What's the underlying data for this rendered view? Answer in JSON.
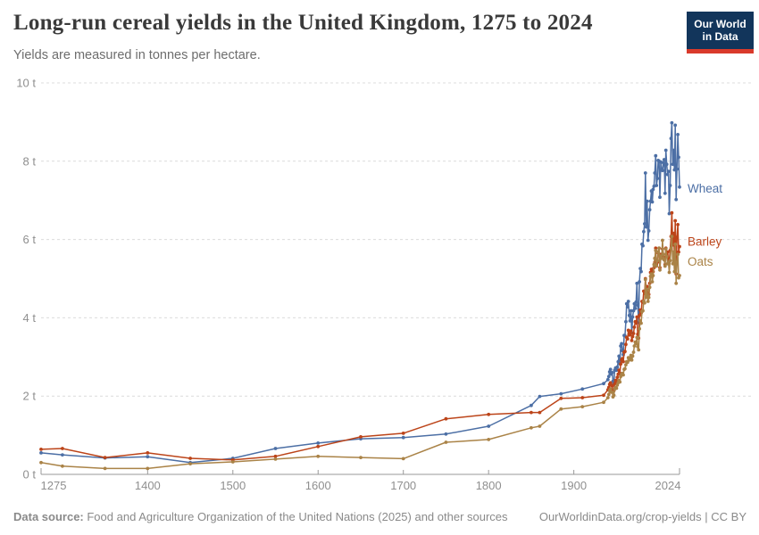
{
  "header": {
    "title": "Long-run cereal yields in the United Kingdom, 1275 to 2024",
    "subtitle": "Yields are measured in tonnes per hectare.",
    "logo": {
      "line1": "Our World",
      "line2": "in Data",
      "bg_color": "#12355b",
      "bar_color": "#d93a2b"
    }
  },
  "footer": {
    "source_label": "Data source:",
    "source_text": " Food and Agriculture Organization of the United Nations (2025) and other sources",
    "credit": "OurWorldinData.org/crop-yields | CC BY"
  },
  "chart_data": {
    "type": "line",
    "title": "Long-run cereal yields in the United Kingdom, 1275 to 2024",
    "ylabel": "tonnes per hectare",
    "xlabel": "",
    "unit": "t",
    "xlim": [
      1275,
      2024
    ],
    "ylim": [
      0,
      10
    ],
    "x_ticks": [
      1275,
      1400,
      1500,
      1600,
      1700,
      1800,
      1900,
      2024
    ],
    "y_ticks": [
      0,
      2,
      4,
      6,
      8,
      10
    ],
    "y_tick_suffix": " t",
    "grid": "horizontal-dashed",
    "legend_position": "line-end-labels",
    "grid_color": "#dcdcdc",
    "axis_color": "#999999",
    "tick_label_color": "#8f8f8f",
    "series": [
      {
        "name": "Wheat",
        "color": "#4c6fa5",
        "label_dy": 2,
        "points": [
          [
            1275,
            0.55
          ],
          [
            1300,
            0.5
          ],
          [
            1350,
            0.42
          ],
          [
            1400,
            0.45
          ],
          [
            1450,
            0.3
          ],
          [
            1500,
            0.41
          ],
          [
            1550,
            0.66
          ],
          [
            1600,
            0.8
          ],
          [
            1650,
            0.91
          ],
          [
            1700,
            0.94
          ],
          [
            1750,
            1.03
          ],
          [
            1800,
            1.23
          ],
          [
            1850,
            1.76
          ],
          [
            1860,
            1.99
          ],
          [
            1885,
            2.06
          ],
          [
            1910,
            2.18
          ],
          [
            1935,
            2.32
          ],
          [
            1940,
            2.42
          ],
          [
            1941,
            2.5
          ],
          [
            1942,
            2.62
          ],
          [
            1943,
            2.68
          ],
          [
            1944,
            2.56
          ],
          [
            1945,
            2.6
          ],
          [
            1946,
            2.38
          ],
          [
            1947,
            2.32
          ],
          [
            1948,
            2.66
          ],
          [
            1949,
            2.72
          ],
          [
            1950,
            2.66
          ],
          [
            1951,
            2.74
          ],
          [
            1952,
            2.88
          ],
          [
            1953,
            3.02
          ],
          [
            1954,
            2.82
          ],
          [
            1955,
            3.28
          ],
          [
            1956,
            3.34
          ],
          [
            1957,
            3.16
          ],
          [
            1958,
            3.06
          ],
          [
            1959,
            3.55
          ],
          [
            1960,
            3.54
          ],
          [
            1961,
            3.9
          ],
          [
            1962,
            4.36
          ],
          [
            1963,
            4.28
          ],
          [
            1964,
            4.42
          ],
          [
            1965,
            4.06
          ],
          [
            1966,
            3.92
          ],
          [
            1967,
            4.18
          ],
          [
            1968,
            3.62
          ],
          [
            1969,
            4.02
          ],
          [
            1970,
            4.18
          ],
          [
            1971,
            4.36
          ],
          [
            1972,
            4.24
          ],
          [
            1973,
            4.4
          ],
          [
            1974,
            4.88
          ],
          [
            1975,
            4.32
          ],
          [
            1976,
            3.88
          ],
          [
            1977,
            4.92
          ],
          [
            1978,
            5.26
          ],
          [
            1979,
            5.18
          ],
          [
            1980,
            5.88
          ],
          [
            1981,
            5.84
          ],
          [
            1982,
            6.2
          ],
          [
            1983,
            6.4
          ],
          [
            1984,
            7.7
          ],
          [
            1985,
            6.32
          ],
          [
            1986,
            6.98
          ],
          [
            1987,
            5.98
          ],
          [
            1988,
            6.22
          ],
          [
            1989,
            6.76
          ],
          [
            1990,
            6.98
          ],
          [
            1991,
            7.24
          ],
          [
            1992,
            6.96
          ],
          [
            1993,
            7.28
          ],
          [
            1994,
            7.36
          ],
          [
            1995,
            7.7
          ],
          [
            1996,
            8.14
          ],
          [
            1997,
            7.38
          ],
          [
            1998,
            7.56
          ],
          [
            1999,
            8.02
          ],
          [
            2000,
            8.0
          ],
          [
            2001,
            7.08
          ],
          [
            2002,
            7.98
          ],
          [
            2003,
            7.78
          ],
          [
            2004,
            7.76
          ],
          [
            2005,
            7.96
          ],
          [
            2006,
            8.04
          ],
          [
            2007,
            7.18
          ],
          [
            2008,
            8.28
          ],
          [
            2009,
            7.92
          ],
          [
            2010,
            7.66
          ],
          [
            2011,
            7.74
          ],
          [
            2012,
            6.66
          ],
          [
            2013,
            7.38
          ],
          [
            2014,
            8.58
          ],
          [
            2015,
            8.98
          ],
          [
            2016,
            7.92
          ],
          [
            2017,
            8.28
          ],
          [
            2018,
            7.78
          ],
          [
            2019,
            8.92
          ],
          [
            2020,
            7.02
          ],
          [
            2021,
            7.8
          ],
          [
            2022,
            8.68
          ],
          [
            2023,
            8.1
          ],
          [
            2024,
            7.34
          ]
        ]
      },
      {
        "name": "Barley",
        "color": "#bc4419",
        "label_dy": -5,
        "points": [
          [
            1275,
            0.64
          ],
          [
            1300,
            0.66
          ],
          [
            1350,
            0.43
          ],
          [
            1400,
            0.55
          ],
          [
            1450,
            0.41
          ],
          [
            1500,
            0.37
          ],
          [
            1550,
            0.46
          ],
          [
            1600,
            0.71
          ],
          [
            1650,
            0.96
          ],
          [
            1700,
            1.05
          ],
          [
            1750,
            1.42
          ],
          [
            1800,
            1.53
          ],
          [
            1850,
            1.58
          ],
          [
            1860,
            1.58
          ],
          [
            1885,
            1.94
          ],
          [
            1910,
            1.96
          ],
          [
            1935,
            2.02
          ],
          [
            1940,
            2.16
          ],
          [
            1941,
            2.22
          ],
          [
            1942,
            2.3
          ],
          [
            1943,
            2.34
          ],
          [
            1944,
            2.28
          ],
          [
            1945,
            2.26
          ],
          [
            1946,
            2.12
          ],
          [
            1947,
            2.14
          ],
          [
            1948,
            2.32
          ],
          [
            1949,
            2.4
          ],
          [
            1950,
            2.36
          ],
          [
            1951,
            2.48
          ],
          [
            1952,
            2.56
          ],
          [
            1953,
            2.66
          ],
          [
            1954,
            2.58
          ],
          [
            1955,
            2.82
          ],
          [
            1956,
            2.92
          ],
          [
            1957,
            2.96
          ],
          [
            1958,
            2.88
          ],
          [
            1959,
            3.12
          ],
          [
            1960,
            3.14
          ],
          [
            1961,
            3.32
          ],
          [
            1962,
            3.5
          ],
          [
            1963,
            3.46
          ],
          [
            1964,
            3.68
          ],
          [
            1965,
            3.56
          ],
          [
            1966,
            3.6
          ],
          [
            1967,
            3.66
          ],
          [
            1968,
            3.42
          ],
          [
            1969,
            3.52
          ],
          [
            1970,
            3.6
          ],
          [
            1971,
            3.76
          ],
          [
            1972,
            3.9
          ],
          [
            1973,
            3.86
          ],
          [
            1974,
            4.02
          ],
          [
            1975,
            3.58
          ],
          [
            1976,
            3.48
          ],
          [
            1977,
            4.06
          ],
          [
            1978,
            4.2
          ],
          [
            1979,
            4.12
          ],
          [
            1980,
            4.42
          ],
          [
            1981,
            4.4
          ],
          [
            1982,
            4.68
          ],
          [
            1983,
            4.62
          ],
          [
            1984,
            5.0
          ],
          [
            1985,
            4.64
          ],
          [
            1986,
            4.8
          ],
          [
            1987,
            4.56
          ],
          [
            1988,
            4.6
          ],
          [
            1989,
            4.88
          ],
          [
            1990,
            5.16
          ],
          [
            1991,
            5.24
          ],
          [
            1992,
            5.06
          ],
          [
            1993,
            5.18
          ],
          [
            1994,
            5.28
          ],
          [
            1995,
            5.42
          ],
          [
            1996,
            5.78
          ],
          [
            1997,
            5.36
          ],
          [
            1998,
            5.42
          ],
          [
            1999,
            5.66
          ],
          [
            2000,
            5.78
          ],
          [
            2001,
            5.28
          ],
          [
            2002,
            5.62
          ],
          [
            2003,
            5.56
          ],
          [
            2004,
            5.76
          ],
          [
            2005,
            5.52
          ],
          [
            2006,
            5.54
          ],
          [
            2007,
            5.36
          ],
          [
            2008,
            5.78
          ],
          [
            2009,
            5.62
          ],
          [
            2010,
            5.68
          ],
          [
            2011,
            5.5
          ],
          [
            2012,
            5.48
          ],
          [
            2013,
            5.72
          ],
          [
            2014,
            6.08
          ],
          [
            2015,
            6.68
          ],
          [
            2016,
            5.86
          ],
          [
            2017,
            6.16
          ],
          [
            2018,
            5.66
          ],
          [
            2019,
            6.48
          ],
          [
            2020,
            5.12
          ],
          [
            2021,
            6.06
          ],
          [
            2022,
            6.38
          ],
          [
            2023,
            5.68
          ],
          [
            2024,
            5.82
          ]
        ]
      },
      {
        "name": "Oats",
        "color": "#aa8347",
        "label_dy": -15,
        "points": [
          [
            1275,
            0.3
          ],
          [
            1300,
            0.21
          ],
          [
            1350,
            0.15
          ],
          [
            1400,
            0.15
          ],
          [
            1450,
            0.27
          ],
          [
            1500,
            0.32
          ],
          [
            1550,
            0.39
          ],
          [
            1600,
            0.46
          ],
          [
            1650,
            0.43
          ],
          [
            1700,
            0.4
          ],
          [
            1750,
            0.82
          ],
          [
            1800,
            0.89
          ],
          [
            1850,
            1.19
          ],
          [
            1860,
            1.23
          ],
          [
            1885,
            1.67
          ],
          [
            1910,
            1.73
          ],
          [
            1935,
            1.84
          ],
          [
            1940,
            1.96
          ],
          [
            1941,
            2.04
          ],
          [
            1942,
            2.14
          ],
          [
            1943,
            2.18
          ],
          [
            1944,
            2.1
          ],
          [
            1945,
            2.1
          ],
          [
            1946,
            1.98
          ],
          [
            1947,
            2.02
          ],
          [
            1948,
            2.18
          ],
          [
            1949,
            2.22
          ],
          [
            1950,
            2.2
          ],
          [
            1951,
            2.28
          ],
          [
            1952,
            2.34
          ],
          [
            1953,
            2.4
          ],
          [
            1954,
            2.36
          ],
          [
            1955,
            2.5
          ],
          [
            1956,
            2.56
          ],
          [
            1957,
            2.58
          ],
          [
            1958,
            2.54
          ],
          [
            1959,
            2.68
          ],
          [
            1960,
            2.7
          ],
          [
            1961,
            2.8
          ],
          [
            1962,
            2.88
          ],
          [
            1963,
            2.86
          ],
          [
            1964,
            2.98
          ],
          [
            1965,
            2.92
          ],
          [
            1966,
            2.96
          ],
          [
            1967,
            3.04
          ],
          [
            1968,
            2.92
          ],
          [
            1969,
            3.02
          ],
          [
            1970,
            3.12
          ],
          [
            1971,
            3.28
          ],
          [
            1972,
            3.38
          ],
          [
            1973,
            3.34
          ],
          [
            1974,
            3.5
          ],
          [
            1975,
            3.26
          ],
          [
            1976,
            3.18
          ],
          [
            1977,
            3.72
          ],
          [
            1978,
            3.92
          ],
          [
            1979,
            3.86
          ],
          [
            1980,
            4.16
          ],
          [
            1981,
            4.18
          ],
          [
            1982,
            4.42
          ],
          [
            1983,
            4.38
          ],
          [
            1984,
            4.98
          ],
          [
            1985,
            4.52
          ],
          [
            1986,
            4.72
          ],
          [
            1987,
            4.42
          ],
          [
            1988,
            4.52
          ],
          [
            1989,
            4.78
          ],
          [
            1990,
            5.06
          ],
          [
            1991,
            5.12
          ],
          [
            1992,
            4.92
          ],
          [
            1993,
            5.08
          ],
          [
            1994,
            5.36
          ],
          [
            1995,
            5.52
          ],
          [
            1996,
            5.72
          ],
          [
            1997,
            5.32
          ],
          [
            1998,
            5.46
          ],
          [
            1999,
            5.68
          ],
          [
            2000,
            5.78
          ],
          [
            2001,
            5.22
          ],
          [
            2002,
            5.58
          ],
          [
            2003,
            5.52
          ],
          [
            2004,
            5.98
          ],
          [
            2005,
            5.62
          ],
          [
            2006,
            5.48
          ],
          [
            2007,
            5.32
          ],
          [
            2008,
            5.76
          ],
          [
            2009,
            5.56
          ],
          [
            2010,
            5.38
          ],
          [
            2011,
            5.42
          ],
          [
            2012,
            5.16
          ],
          [
            2013,
            5.46
          ],
          [
            2014,
            5.78
          ],
          [
            2015,
            6.08
          ],
          [
            2016,
            5.38
          ],
          [
            2017,
            5.68
          ],
          [
            2018,
            5.18
          ],
          [
            2019,
            5.88
          ],
          [
            2020,
            4.88
          ],
          [
            2021,
            5.42
          ],
          [
            2022,
            5.62
          ],
          [
            2023,
            5.02
          ],
          [
            2024,
            5.08
          ]
        ]
      }
    ]
  }
}
